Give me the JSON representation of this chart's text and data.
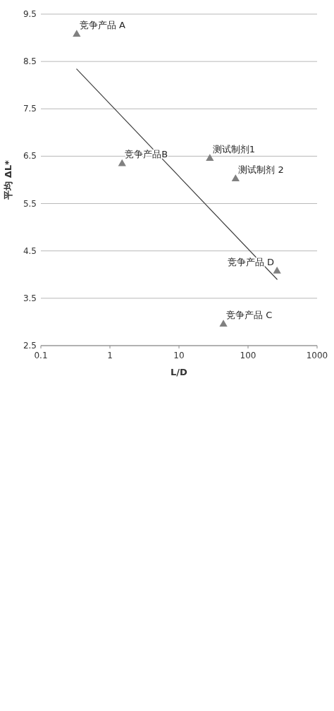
{
  "chart_data": {
    "type": "scatter",
    "xlabel": "L/D",
    "ylabel": "平均 ΔL*",
    "log": "x",
    "grid": "y",
    "marker": "triangle",
    "xlim": [
      0.1,
      1000
    ],
    "ylim": [
      2.5,
      9.5
    ],
    "xticks": [
      0.1,
      1,
      10,
      100,
      1000
    ],
    "yticks": [
      2.5,
      3.5,
      4.5,
      5.5,
      6.5,
      7.5,
      8.5,
      9.5
    ],
    "series": [
      {
        "color": "#808080",
        "x": [
          0.33,
          1.5,
          28,
          66,
          44,
          263
        ],
        "values": [
          9.07,
          6.34,
          6.45,
          6.02,
          2.95,
          4.07
        ]
      },
      {
        "type": "line",
        "color": "#404040",
        "line_style": "solid",
        "marker": "none",
        "x": [
          0.33,
          263
        ],
        "values": [
          8.34,
          3.9
        ]
      }
    ],
    "annotations": [
      {
        "text": "竞争产品 A",
        "x": 0.33,
        "y": 9.07
      },
      {
        "text": "竞争产品B",
        "x": 1.5,
        "y": 6.34
      },
      {
        "text": "测试制剂1",
        "x": 28,
        "y": 6.45
      },
      {
        "text": "测试制剂 2",
        "x": 66,
        "y": 6.02
      },
      {
        "text": "竞争产品 C",
        "x": 44,
        "y": 2.95
      },
      {
        "text": "竞争产品 D",
        "x": 263,
        "y": 4.07
      }
    ]
  }
}
